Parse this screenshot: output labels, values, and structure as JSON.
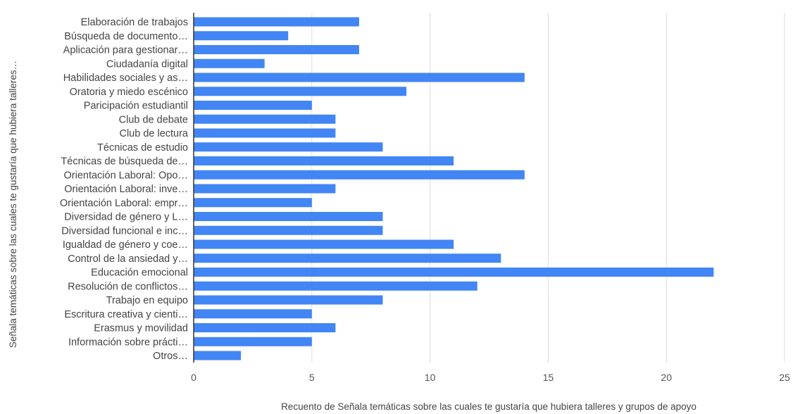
{
  "chart_data": {
    "type": "bar",
    "orientation": "horizontal",
    "categories": [
      "Elaboración de trabajos",
      "Búsqueda de documento…",
      "Aplicación para gestionar…",
      "Ciudadanía digital",
      "Habilidades sociales y as…",
      "Oratoria y miedo escénico",
      "Paricipación estudiantil",
      "Club de debate",
      "Club de lectura",
      "Técnicas de estudio",
      "Técnicas de búsqueda de…",
      "Orientación Laboral: Opo…",
      "Orientación Laboral: inve…",
      "Orientación Laboral: empr…",
      "Diversidad de género y L…",
      "Diversidad funcional e inc…",
      "Igualdad de género y coe…",
      "Control de la ansiedad y…",
      "Educación emocional",
      "Resolución de conflictos…",
      "Trabajo en equipo",
      "Escritura creativa y cienti…",
      "Erasmus y movilidad",
      "Información sobre prácti…",
      "Otros…"
    ],
    "values": [
      7,
      4,
      7,
      3,
      14,
      9,
      5,
      6,
      6,
      8,
      11,
      14,
      6,
      5,
      8,
      8,
      11,
      13,
      22,
      12,
      8,
      5,
      6,
      5,
      2
    ],
    "xlim": [
      0,
      25
    ],
    "xticks": [
      "0",
      "5",
      "10",
      "15",
      "20",
      "25"
    ],
    "xlabel": "Recuento de Señala temáticas sobre las cuales te gustaría que hubiera talleres y grupos de apoyo",
    "ylabel": "Señala temáticas sobre las cuales te gustaría que hubiera talleres…",
    "grid": "vertical",
    "legend": "none",
    "colors": {
      "bar": "#4285f4",
      "grid": "#dddddd",
      "axis": "#333333"
    }
  }
}
